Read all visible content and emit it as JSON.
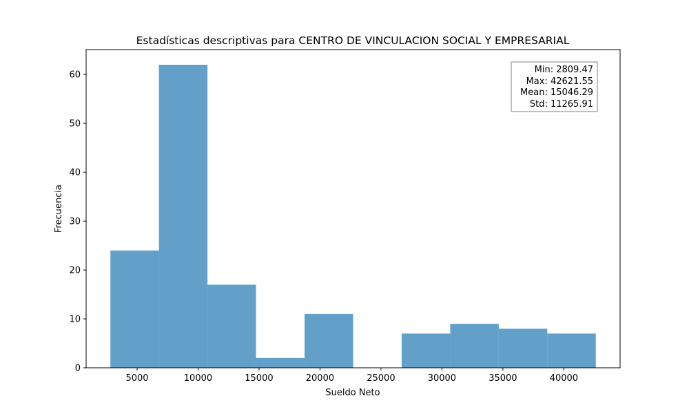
{
  "chart_data": {
    "type": "bar",
    "subtype": "histogram",
    "title": "Estadísticas descriptivas para CENTRO DE VINCULACION SOCIAL Y EMPRESARIAL",
    "xlabel": "Sueldo Neto",
    "ylabel": "Frecuencia",
    "bin_edges": [
      2809.47,
      6790.68,
      10771.89,
      14753.1,
      18734.31,
      22715.51,
      26696.72,
      30677.93,
      34659.14,
      38640.34,
      42621.55
    ],
    "values": [
      24,
      62,
      17,
      2,
      11,
      0,
      7,
      9,
      8,
      7
    ],
    "xlim": [
      818.9,
      44612.1
    ],
    "ylim": [
      0,
      65.1
    ],
    "x_ticks": [
      5000,
      10000,
      15000,
      20000,
      25000,
      30000,
      35000,
      40000
    ],
    "y_ticks": [
      0,
      10,
      20,
      30,
      40,
      50,
      60
    ],
    "bar_color": "#1f77b4",
    "bar_alpha": 0.7,
    "stats_box": {
      "placement": "top-right",
      "lines": [
        "Min: 2809.47",
        "Max: 42621.55",
        "Mean: 15046.29",
        "Std: 11265.91"
      ]
    },
    "grid": false,
    "legend": "none"
  }
}
